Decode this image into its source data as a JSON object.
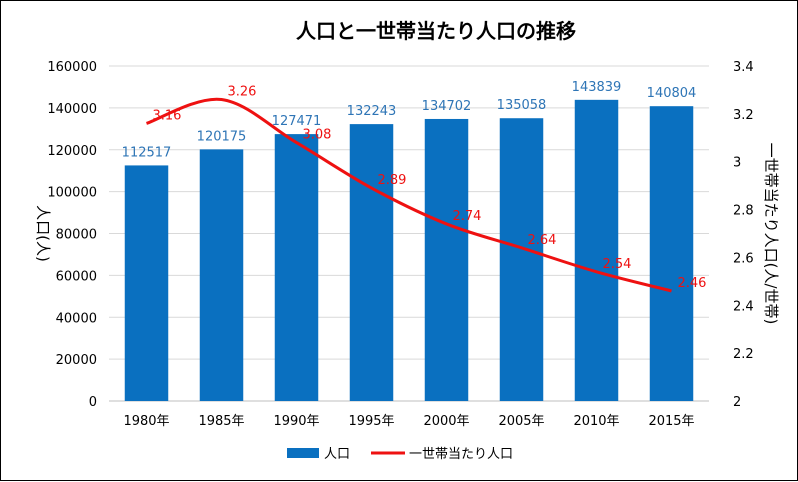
{
  "chart_data": {
    "type": "bar",
    "title": "人口と一世帯当たり人口の推移",
    "categories": [
      "1980年",
      "1985年",
      "1990年",
      "1995年",
      "2000年",
      "2005年",
      "2010年",
      "2015年"
    ],
    "series": [
      {
        "name": "人口",
        "type": "bar",
        "axis": "left",
        "color": "#0a70c0",
        "label_color": "#2e75b6",
        "values": [
          112517,
          120175,
          127471,
          132243,
          134702,
          135058,
          143839,
          140804
        ]
      },
      {
        "name": "一世帯当たり人口",
        "type": "line",
        "axis": "right",
        "color": "#ee1111",
        "label_color": "#ee1111",
        "values": [
          3.16,
          3.26,
          3.08,
          2.89,
          2.74,
          2.64,
          2.54,
          2.46
        ]
      }
    ],
    "y_left": {
      "label": "人口(人)",
      "ylim": [
        0,
        160000
      ],
      "ticks": [
        "0",
        "20000",
        "40000",
        "60000",
        "80000",
        "100000",
        "120000",
        "140000",
        "160000"
      ]
    },
    "y_right": {
      "label": "一世帯当たり人口(人/世帯)",
      "ylim": [
        2,
        3.4
      ],
      "ticks": [
        "2",
        "2.2",
        "2.4",
        "2.6",
        "2.8",
        "3",
        "3.2",
        "3.4"
      ]
    },
    "grid": true,
    "legend_position": "bottom"
  }
}
